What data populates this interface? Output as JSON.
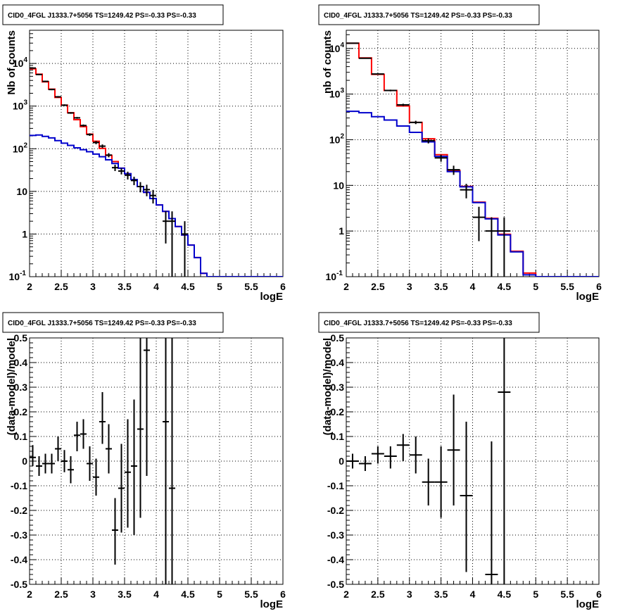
{
  "colors": {
    "data": "#000000",
    "total_model": "#ff0000",
    "source_model": "#0000cc"
  },
  "chart_data": [
    {
      "type": "line",
      "title": "CID0_4FGL J1333.7+5056 TS=1249.42 PS=-0.33 PS=-0.33",
      "xlabel": "logE",
      "ylabel": "Nb of counts",
      "xlim": [
        2,
        6
      ],
      "ylim": [
        0.1,
        60000
      ],
      "yscale": "log",
      "grid": true,
      "x_ticks": [
        "2",
        "2.5",
        "3",
        "3.5",
        "4",
        "4.5",
        "5",
        "5.5",
        "6"
      ],
      "y_ticks": [
        "10^-1",
        "1",
        "10",
        "10^2",
        "10^3",
        "10^4"
      ],
      "y_tick_values": [
        0.1,
        1,
        10,
        100,
        1000,
        10000
      ],
      "bin_edges": [
        2.0,
        2.1,
        2.2,
        2.3,
        2.4,
        2.5,
        2.6,
        2.7,
        2.8,
        2.9,
        3.0,
        3.1,
        3.2,
        3.3,
        3.4,
        3.5,
        3.6,
        3.7,
        3.8,
        3.9,
        4.0,
        4.1,
        4.2,
        4.3,
        4.4,
        4.5,
        4.6,
        4.7,
        4.8,
        4.9,
        5.0,
        5.1,
        5.2,
        5.3,
        5.4,
        5.5,
        5.6,
        5.7,
        5.8,
        5.9,
        6.0
      ],
      "series": [
        {
          "role": "total_model",
          "values": [
            7500,
            5600,
            3700,
            2500,
            1600,
            1050,
            700,
            480,
            330,
            220,
            150,
            102,
            70,
            50,
            35,
            26,
            19,
            13,
            9.5,
            6.8,
            4.8,
            3.4,
            2.3,
            1.5,
            0.95,
            0.55,
            0.28,
            0.12,
            0.1,
            0.1,
            0.1,
            0.1,
            0.1,
            0.1,
            0.1,
            0.1,
            0.1,
            0.1,
            0.1,
            0.1
          ]
        },
        {
          "role": "source_model",
          "values": [
            205,
            210,
            195,
            180,
            155,
            135,
            120,
            105,
            95,
            85,
            75,
            65,
            55,
            45,
            35,
            26,
            19,
            13,
            9.5,
            6.8,
            4.8,
            3.4,
            2.3,
            1.5,
            0.95,
            0.55,
            0.28,
            0.12,
            0.1,
            0.1,
            0.1,
            0.1,
            0.1,
            0.1,
            0.1,
            0.1,
            0.1,
            0.1,
            0.1,
            0.1
          ]
        },
        {
          "role": "data",
          "points": [
            {
              "x": 2.05,
              "y": 7800,
              "lo": 7600,
              "hi": 8000
            },
            {
              "x": 2.15,
              "y": 5500,
              "lo": 5350,
              "hi": 5650
            },
            {
              "x": 2.25,
              "y": 3800,
              "lo": 3680,
              "hi": 3920
            },
            {
              "x": 2.35,
              "y": 2450,
              "lo": 2360,
              "hi": 2550
            },
            {
              "x": 2.45,
              "y": 1650,
              "lo": 1580,
              "hi": 1720
            },
            {
              "x": 2.55,
              "y": 1050,
              "lo": 1000,
              "hi": 1100
            },
            {
              "x": 2.65,
              "y": 690,
              "lo": 660,
              "hi": 720
            },
            {
              "x": 2.75,
              "y": 530,
              "lo": 505,
              "hi": 555
            },
            {
              "x": 2.85,
              "y": 350,
              "lo": 330,
              "hi": 370
            },
            {
              "x": 2.95,
              "y": 215,
              "lo": 200,
              "hi": 230
            },
            {
              "x": 3.05,
              "y": 140,
              "lo": 128,
              "hi": 152
            },
            {
              "x": 3.15,
              "y": 115,
              "lo": 104,
              "hi": 126
            },
            {
              "x": 3.25,
              "y": 71,
              "lo": 63,
              "hi": 79
            },
            {
              "x": 3.35,
              "y": 36,
              "lo": 30,
              "hi": 42
            },
            {
              "x": 3.45,
              "y": 30,
              "lo": 25,
              "hi": 35
            },
            {
              "x": 3.55,
              "y": 24,
              "lo": 19,
              "hi": 29
            },
            {
              "x": 3.65,
              "y": 18,
              "lo": 14,
              "hi": 22
            },
            {
              "x": 3.75,
              "y": 13,
              "lo": 9.5,
              "hi": 16.5
            },
            {
              "x": 3.85,
              "y": 11,
              "lo": 7.7,
              "hi": 14.3
            },
            {
              "x": 3.95,
              "y": 8,
              "lo": 5.2,
              "hi": 10.8
            },
            {
              "x": 4.15,
              "y": 2,
              "lo": 0.6,
              "hi": 3.4
            },
            {
              "x": 4.25,
              "y": 2,
              "lo": 0.1,
              "hi": 3.4
            },
            {
              "x": 4.45,
              "y": 1,
              "lo": 0.1,
              "hi": 2.0
            }
          ]
        }
      ]
    },
    {
      "type": "line",
      "title": "CID0_4FGL J1333.7+5056 TS=1249.42 PS=-0.33 PS=-0.33",
      "xlabel": "logE",
      "ylabel": "nb of counts",
      "xlim": [
        2,
        6
      ],
      "ylim": [
        0.1,
        25000
      ],
      "yscale": "log",
      "grid": true,
      "x_ticks": [
        "2",
        "2.5",
        "3",
        "3.5",
        "4",
        "4.5",
        "5",
        "5.5",
        "6"
      ],
      "y_ticks": [
        "10^-1",
        "1",
        "10",
        "10^2",
        "10^3",
        "10^4"
      ],
      "y_tick_values": [
        0.1,
        1,
        10,
        100,
        1000,
        10000
      ],
      "bin_edges": [
        2.0,
        2.2,
        2.4,
        2.6,
        2.8,
        3.0,
        3.2,
        3.4,
        3.6,
        3.8,
        4.0,
        4.2,
        4.4,
        4.6,
        4.8,
        5.0,
        5.2,
        5.4,
        5.6,
        5.8,
        6.0
      ],
      "series": [
        {
          "role": "total_model",
          "values": [
            13000,
            6200,
            2700,
            1200,
            550,
            240,
            105,
            47,
            21,
            9.5,
            4.3,
            1.9,
            0.85,
            0.36,
            0.12,
            0.1,
            0.1,
            0.1,
            0.1,
            0.1
          ]
        },
        {
          "role": "source_model",
          "values": [
            420,
            390,
            320,
            270,
            200,
            145,
            90,
            43,
            20,
            9.3,
            4.2,
            1.85,
            0.82,
            0.35,
            0.11,
            0.1,
            0.1,
            0.1,
            0.1,
            0.1
          ]
        },
        {
          "role": "data",
          "points": [
            {
              "x": 2.1,
              "y": 13000,
              "lo": 12800,
              "hi": 13200
            },
            {
              "x": 2.3,
              "y": 6100,
              "lo": 5980,
              "hi": 6220
            },
            {
              "x": 2.5,
              "y": 2750,
              "lo": 2670,
              "hi": 2830
            },
            {
              "x": 2.7,
              "y": 1200,
              "lo": 1150,
              "hi": 1250
            },
            {
              "x": 2.9,
              "y": 580,
              "lo": 545,
              "hi": 615
            },
            {
              "x": 3.1,
              "y": 240,
              "lo": 220,
              "hi": 260
            },
            {
              "x": 3.3,
              "y": 95,
              "lo": 83,
              "hi": 107
            },
            {
              "x": 3.5,
              "y": 40,
              "lo": 33,
              "hi": 47
            },
            {
              "x": 3.7,
              "y": 22,
              "lo": 17,
              "hi": 27
            },
            {
              "x": 3.9,
              "y": 8,
              "lo": 5.2,
              "hi": 10.8
            },
            {
              "x": 4.1,
              "y": 2,
              "lo": 0.6,
              "hi": 3.4
            },
            {
              "x": 4.3,
              "y": 1,
              "lo": 0.1,
              "hi": 2.0
            },
            {
              "x": 4.5,
              "y": 1,
              "lo": 0.1,
              "hi": 2.0
            }
          ]
        }
      ]
    },
    {
      "type": "scatter",
      "title": "CID0_4FGL J1333.7+5056 TS=1249.42 PS=-0.33 PS=-0.33",
      "xlabel": "logE",
      "ylabel": "(data-model)/model",
      "xlim": [
        2,
        6
      ],
      "ylim": [
        -0.5,
        0.5
      ],
      "yscale": "linear",
      "grid": true,
      "x_ticks": [
        "2",
        "2.5",
        "3",
        "3.5",
        "4",
        "4.5",
        "5",
        "5.5",
        "6"
      ],
      "y_ticks": [
        "-0.5",
        "-0.4",
        "-0.3",
        "-0.2",
        "-0.1",
        "0",
        "0.1",
        "0.2",
        "0.3",
        "0.4",
        "0.5"
      ],
      "y_tick_values": [
        -0.5,
        -0.4,
        -0.3,
        -0.2,
        -0.1,
        0,
        0.1,
        0.2,
        0.3,
        0.4,
        0.5
      ],
      "x_halfwidth": 0.05,
      "series": [
        {
          "role": "data",
          "points": [
            {
              "x": 2.05,
              "y": 0.015,
              "lo": -0.02,
              "hi": 0.065
            },
            {
              "x": 2.15,
              "y": -0.02,
              "lo": -0.06,
              "hi": 0.02
            },
            {
              "x": 2.25,
              "y": -0.01,
              "lo": -0.05,
              "hi": 0.03
            },
            {
              "x": 2.35,
              "y": -0.01,
              "lo": -0.05,
              "hi": 0.03
            },
            {
              "x": 2.45,
              "y": 0.05,
              "lo": 0.0,
              "hi": 0.1
            },
            {
              "x": 2.55,
              "y": 0.0,
              "lo": -0.045,
              "hi": 0.045
            },
            {
              "x": 2.65,
              "y": -0.035,
              "lo": -0.09,
              "hi": 0.02
            },
            {
              "x": 2.75,
              "y": 0.105,
              "lo": 0.04,
              "hi": 0.16
            },
            {
              "x": 2.85,
              "y": 0.11,
              "lo": 0.05,
              "hi": 0.17
            },
            {
              "x": 2.95,
              "y": -0.01,
              "lo": -0.08,
              "hi": 0.06
            },
            {
              "x": 3.05,
              "y": -0.065,
              "lo": -0.14,
              "hi": 0.01
            },
            {
              "x": 3.15,
              "y": 0.16,
              "lo": 0.07,
              "hi": 0.28
            },
            {
              "x": 3.25,
              "y": 0.05,
              "lo": -0.05,
              "hi": 0.15
            },
            {
              "x": 3.35,
              "y": -0.28,
              "lo": -0.42,
              "hi": -0.15
            },
            {
              "x": 3.45,
              "y": -0.11,
              "lo": -0.29,
              "hi": 0.07
            },
            {
              "x": 3.55,
              "y": -0.045,
              "lo": -0.27,
              "hi": 0.17
            },
            {
              "x": 3.65,
              "y": -0.02,
              "lo": -0.3,
              "hi": 0.25
            },
            {
              "x": 3.75,
              "y": 0.13,
              "lo": -0.23,
              "hi": 0.5
            },
            {
              "x": 3.85,
              "y": 0.45,
              "lo": -0.06,
              "hi": 0.5
            },
            {
              "x": 4.15,
              "y": 0.16,
              "lo": -0.5,
              "hi": 0.5
            },
            {
              "x": 4.25,
              "y": -0.11,
              "lo": -0.5,
              "hi": 0.5
            }
          ]
        }
      ]
    },
    {
      "type": "scatter",
      "title": "CID0_4FGL J1333.7+5056 TS=1249.42 PS=-0.33 PS=-0.33",
      "xlabel": "logE",
      "ylabel": "(data-model)/model",
      "xlim": [
        2,
        6
      ],
      "ylim": [
        -0.5,
        0.5
      ],
      "yscale": "linear",
      "grid": true,
      "x_ticks": [
        "2",
        "2.5",
        "3",
        "3.5",
        "4",
        "4.5",
        "5",
        "5.5",
        "6"
      ],
      "y_ticks": [
        "-0.5",
        "-0.4",
        "-0.3",
        "-0.2",
        "-0.1",
        "0",
        "0.1",
        "0.2",
        "0.3",
        "0.4",
        "0.5"
      ],
      "y_tick_values": [
        -0.5,
        -0.4,
        -0.3,
        -0.2,
        -0.1,
        0,
        0.1,
        0.2,
        0.3,
        0.4,
        0.5
      ],
      "x_halfwidth": 0.1,
      "series": [
        {
          "role": "data",
          "points": [
            {
              "x": 2.1,
              "y": 0.0,
              "lo": -0.03,
              "hi": 0.03
            },
            {
              "x": 2.3,
              "y": -0.01,
              "lo": -0.04,
              "hi": 0.02
            },
            {
              "x": 2.5,
              "y": 0.03,
              "lo": -0.01,
              "hi": 0.06
            },
            {
              "x": 2.7,
              "y": 0.02,
              "lo": -0.03,
              "hi": 0.06
            },
            {
              "x": 2.9,
              "y": 0.065,
              "lo": 0.0,
              "hi": 0.11
            },
            {
              "x": 3.1,
              "y": 0.025,
              "lo": -0.05,
              "hi": 0.1
            },
            {
              "x": 3.3,
              "y": -0.085,
              "lo": -0.18,
              "hi": 0.01
            },
            {
              "x": 3.5,
              "y": -0.085,
              "lo": -0.23,
              "hi": 0.06
            },
            {
              "x": 3.7,
              "y": 0.045,
              "lo": -0.18,
              "hi": 0.27
            },
            {
              "x": 3.9,
              "y": -0.14,
              "lo": -0.45,
              "hi": 0.16
            },
            {
              "x": 4.3,
              "y": -0.46,
              "lo": -0.5,
              "hi": 0.08
            },
            {
              "x": 4.5,
              "y": 0.28,
              "lo": -0.5,
              "hi": 0.5
            }
          ]
        }
      ]
    }
  ]
}
